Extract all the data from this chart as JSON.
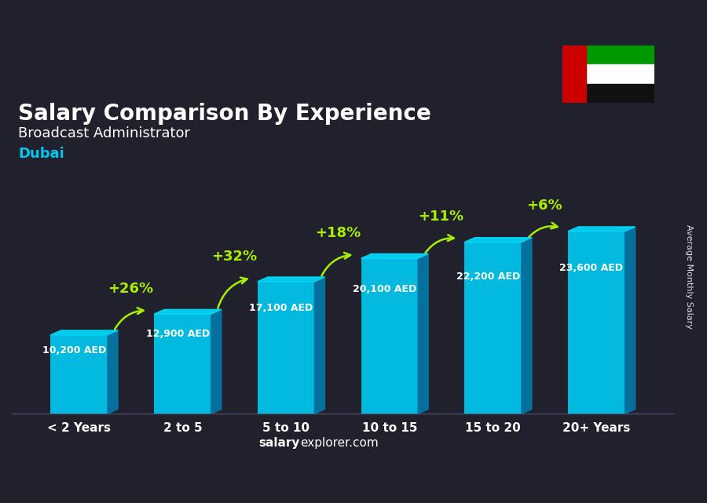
{
  "title": "Salary Comparison By Experience",
  "subtitle": "Broadcast Administrator",
  "location": "Dubai",
  "categories": [
    "< 2 Years",
    "2 to 5",
    "5 to 10",
    "10 to 15",
    "15 to 20",
    "20+ Years"
  ],
  "values": [
    10200,
    12900,
    17100,
    20100,
    22200,
    23600
  ],
  "labels": [
    "10,200 AED",
    "12,900 AED",
    "17,100 AED",
    "20,100 AED",
    "22,200 AED",
    "23,600 AED"
  ],
  "pct_changes": [
    "+26%",
    "+32%",
    "+18%",
    "+11%",
    "+6%"
  ],
  "bar_color_face": "#00c8f0",
  "bar_color_side": "#007aaa",
  "bar_color_top": "#00deff",
  "pct_color": "#aaee00",
  "location_color": "#00c8f0",
  "watermark": "salaryexplorer.com",
  "ylabel_text": "Average Monthly Salary",
  "bar_width": 0.55
}
